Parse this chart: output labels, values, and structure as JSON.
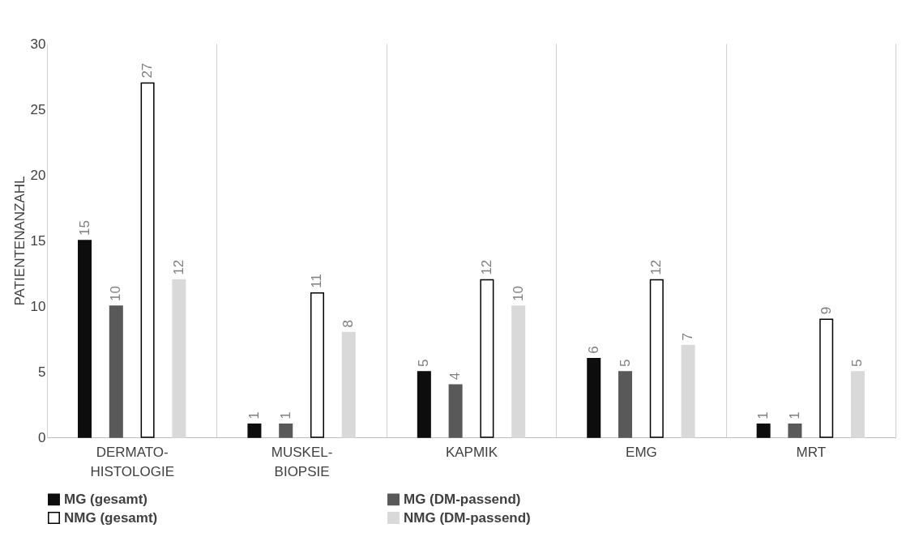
{
  "chart_data": {
    "type": "bar",
    "ylabel": "PATIENTENANZAHL",
    "categories": [
      "DERMATO-HISTOLOGIE",
      "MUSKEL-BIOPSIE",
      "KAPMIK",
      "EMG",
      "MRT"
    ],
    "series": [
      {
        "name": "MG (gesamt)",
        "color": "#0d0d0d",
        "values": [
          15,
          1,
          5,
          6,
          1
        ]
      },
      {
        "name": "MG (DM-passend)",
        "color": "#595959",
        "values": [
          10,
          1,
          4,
          5,
          1
        ]
      },
      {
        "name": "NMG (gesamt)",
        "color": "#ffffff",
        "values": [
          27,
          11,
          12,
          12,
          9
        ]
      },
      {
        "name": "NMG (DM-passend)",
        "color": "#d9d9d9",
        "values": [
          12,
          8,
          10,
          7,
          5
        ]
      }
    ],
    "ylim": [
      0,
      30
    ],
    "yticks": [
      0,
      5,
      10,
      15,
      20,
      25,
      30
    ],
    "grid": "x",
    "legend": "bottom",
    "data_labels": true
  }
}
